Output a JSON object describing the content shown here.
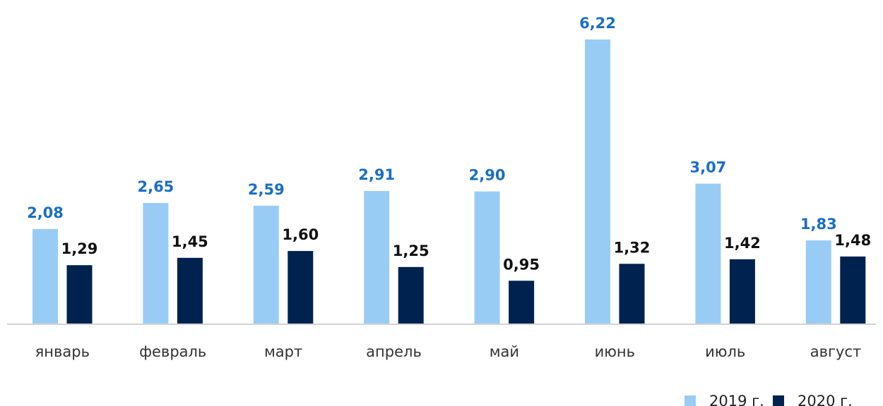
{
  "chart_data": {
    "type": "bar",
    "categories": [
      "январь",
      "февраль",
      "март",
      "апрель",
      "май",
      "июнь",
      "июль",
      "август"
    ],
    "series": [
      {
        "name": "2019 г.",
        "values": [
          2.08,
          2.65,
          2.59,
          2.91,
          2.9,
          6.22,
          3.07,
          1.83
        ],
        "labels": [
          "2,08",
          "2,65",
          "2,59",
          "2,91",
          "2,90",
          "6,22",
          "3,07",
          "1,83"
        ],
        "color": "#99ccf5",
        "label_color": "#1a6fc4"
      },
      {
        "name": "2020 г.",
        "values": [
          1.29,
          1.45,
          1.6,
          1.25,
          0.95,
          1.32,
          1.42,
          1.48
        ],
        "labels": [
          "1,29",
          "1,45",
          "1,60",
          "1,25",
          "0,95",
          "1,32",
          "1,42",
          "1,48"
        ],
        "color": "#00224f",
        "label_color": "#111111"
      }
    ],
    "title": "",
    "xlabel": "",
    "ylabel": "",
    "ylim": [
      0,
      6.22
    ],
    "grid": false,
    "legend": "bottom-right",
    "baseline_color": "#cfd3d8"
  }
}
